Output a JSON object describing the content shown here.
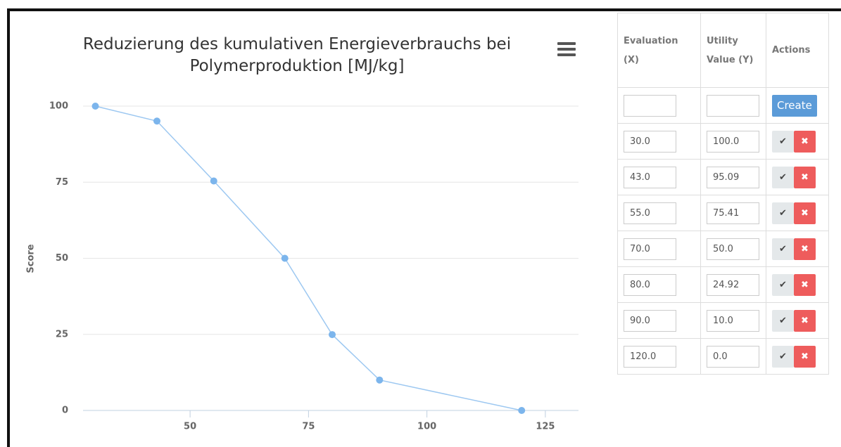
{
  "chart_data": {
    "type": "line",
    "title": "Reduzierung des kumulativen Energieverbrauchs bei Polymerproduktion [MJ/kg]",
    "y_label": "Score",
    "x": [
      30,
      43,
      55,
      70,
      80,
      90,
      120
    ],
    "values": [
      100,
      95.09,
      75.41,
      50,
      24.92,
      10,
      0
    ],
    "color": "#7cb5ec",
    "xlim": [
      27.4,
      132
    ],
    "xticks": [
      50,
      75,
      100,
      125
    ],
    "ylim": [
      0,
      100
    ],
    "yticks": [
      0,
      25,
      50,
      75,
      100
    ],
    "grid": true
  },
  "table": {
    "headers": [
      "Evaluation (X)",
      "Utility Value (Y)",
      "Actions"
    ],
    "create_button": "Create",
    "rows": [
      [
        "30.0",
        "100.0"
      ],
      [
        "43.0",
        "95.09"
      ],
      [
        "55.0",
        "75.41"
      ],
      [
        "70.0",
        "50.0"
      ],
      [
        "80.0",
        "24.92"
      ],
      [
        "90.0",
        "10.0"
      ],
      [
        "120.0",
        "0.0"
      ]
    ]
  }
}
